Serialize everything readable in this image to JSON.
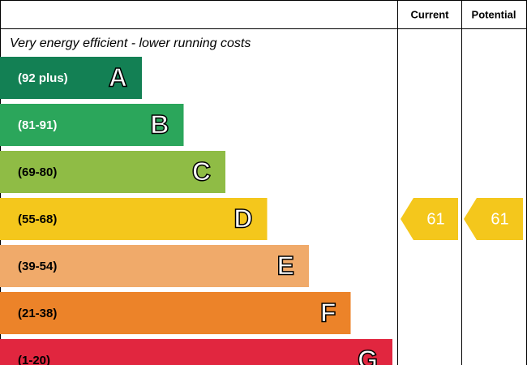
{
  "header": {
    "columns": [
      "Current",
      "Potential"
    ]
  },
  "subtitle": "Very energy efficient - lower running costs",
  "bands": [
    {
      "range": "(92 plus)",
      "letter": "A",
      "color": "#138054"
    },
    {
      "range": "(81-91)",
      "letter": "B",
      "color": "#2ba65b"
    },
    {
      "range": "(69-80)",
      "letter": "C",
      "color": "#8fbc45"
    },
    {
      "range": "(55-68)",
      "letter": "D",
      "color": "#f4c71c"
    },
    {
      "range": "(39-54)",
      "letter": "E",
      "color": "#f0aa6a"
    },
    {
      "range": "(21-38)",
      "letter": "F",
      "color": "#ec8329"
    },
    {
      "range": "(1-20)",
      "letter": "G",
      "color": "#e1263f"
    }
  ],
  "ratings": [
    {
      "score": "61",
      "band": "D"
    },
    {
      "score": "61",
      "band": "D"
    }
  ]
}
